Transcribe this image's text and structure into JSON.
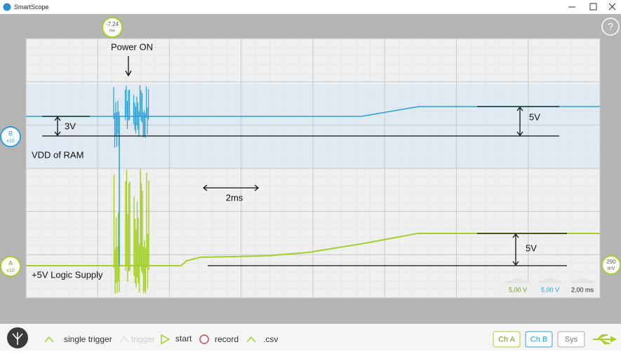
{
  "window": {
    "title": "SmartScope"
  },
  "scope": {
    "time_marker": {
      "value": "-7,24",
      "unit": "ms"
    },
    "annotations": {
      "power_on": "Power ON",
      "ch_b_delta": "3V",
      "ch_b_step": "5V",
      "ch_b_label": "VDD of RAM",
      "time_span": "2ms",
      "ch_a_step": "5V",
      "ch_a_label": "+5V Logic Supply"
    },
    "channel_b": {
      "name": "B",
      "gain": "x10"
    },
    "channel_a": {
      "name": "A",
      "gain": "x10"
    },
    "trigger_level": {
      "value": "290",
      "unit": "mV"
    },
    "readouts": [
      "5,00 V",
      "5,00 V",
      "2,00 ms"
    ],
    "help": "?"
  },
  "toolbar": {
    "items": [
      "single trigger",
      "trigger",
      "start",
      "record",
      ".csv"
    ],
    "tabs": [
      "Ch A",
      "Ch B",
      "Sys"
    ]
  }
}
